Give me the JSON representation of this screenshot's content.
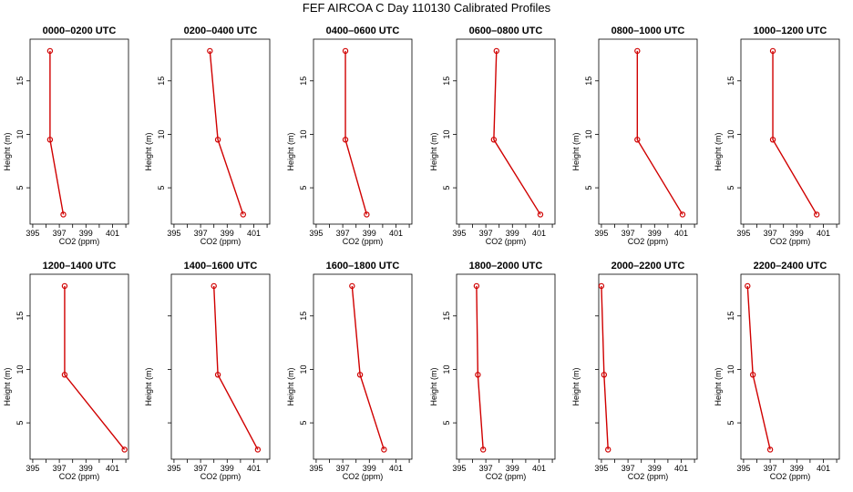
{
  "title": "FEF AIRCOA C  Day 110130  Calibrated Profiles",
  "colors": {
    "line": "#d00000",
    "frame": "#000000"
  },
  "chart_data": [
    {
      "type": "line",
      "title": "0000–0200 UTC",
      "xlabel": "CO2 (ppm)",
      "ylabel": "Height (m)",
      "xlim": [
        394.8,
        402.2
      ],
      "ylim": [
        1.6,
        18.9
      ],
      "xticks": [
        395,
        397,
        399,
        401
      ],
      "yticks": [
        5,
        10,
        15
      ],
      "heights": [
        2.5,
        9.5,
        17.8
      ],
      "values": [
        397.3,
        396.3,
        396.3
      ],
      "ytick_labels_shown": true
    },
    {
      "type": "line",
      "title": "0200–0400 UTC",
      "xlabel": "CO2 (ppm)",
      "ylabel": "Height (m)",
      "xlim": [
        394.8,
        402.2
      ],
      "ylim": [
        1.6,
        18.9
      ],
      "xticks": [
        395,
        397,
        399,
        401
      ],
      "yticks": [
        5,
        10,
        15
      ],
      "heights": [
        2.5,
        9.5,
        17.8
      ],
      "values": [
        400.2,
        398.3,
        397.7
      ],
      "ytick_labels_shown": true
    },
    {
      "type": "line",
      "title": "0400–0600 UTC",
      "xlabel": "CO2 (ppm)",
      "ylabel": "Height (m)",
      "xlim": [
        394.8,
        402.2
      ],
      "ylim": [
        1.6,
        18.9
      ],
      "xticks": [
        395,
        397,
        399,
        401
      ],
      "yticks": [
        5,
        10,
        15
      ],
      "heights": [
        2.5,
        9.5,
        17.8
      ],
      "values": [
        398.8,
        397.2,
        397.2
      ],
      "ytick_labels_shown": true
    },
    {
      "type": "line",
      "title": "0600–0800 UTC",
      "xlabel": "CO2 (ppm)",
      "ylabel": "Height (m)",
      "xlim": [
        394.8,
        402.2
      ],
      "ylim": [
        1.6,
        18.9
      ],
      "xticks": [
        395,
        397,
        399,
        401
      ],
      "yticks": [
        5,
        10,
        15
      ],
      "heights": [
        2.5,
        9.5,
        17.8
      ],
      "values": [
        401.1,
        397.6,
        397.8
      ],
      "ytick_labels_shown": true
    },
    {
      "type": "line",
      "title": "0800–1000 UTC",
      "xlabel": "CO2 (ppm)",
      "ylabel": "Height (m)",
      "xlim": [
        394.8,
        402.2
      ],
      "ylim": [
        1.6,
        18.9
      ],
      "xticks": [
        395,
        397,
        399,
        401
      ],
      "yticks": [
        5,
        10,
        15
      ],
      "heights": [
        2.5,
        9.5,
        17.8
      ],
      "values": [
        401.1,
        397.7,
        397.7
      ],
      "ytick_labels_shown": true
    },
    {
      "type": "line",
      "title": "1000–1200 UTC",
      "xlabel": "CO2 (ppm)",
      "ylabel": "Height (m)",
      "xlim": [
        394.8,
        402.2
      ],
      "ylim": [
        1.6,
        18.9
      ],
      "xticks": [
        395,
        397,
        399,
        401
      ],
      "yticks": [
        5,
        10,
        15
      ],
      "heights": [
        2.5,
        9.5,
        17.8
      ],
      "values": [
        400.5,
        397.2,
        397.2
      ],
      "ytick_labels_shown": true
    },
    {
      "type": "line",
      "title": "1200–1400 UTC",
      "xlabel": "CO2 (ppm)",
      "ylabel": "Height (m)",
      "xlim": [
        394.8,
        402.2
      ],
      "ylim": [
        1.6,
        18.9
      ],
      "xticks": [
        395,
        397,
        399,
        401
      ],
      "yticks": [
        5,
        10,
        15
      ],
      "heights": [
        2.5,
        9.5,
        17.8
      ],
      "values": [
        401.9,
        397.4,
        397.4
      ],
      "ytick_labels_shown": true
    },
    {
      "type": "line",
      "title": "1400–1600 UTC",
      "xlabel": "CO2 (ppm)",
      "ylabel": "Height (m)",
      "xlim": [
        394.8,
        402.2
      ],
      "ylim": [
        1.6,
        18.9
      ],
      "xticks": [
        395,
        397,
        399,
        401
      ],
      "yticks": [
        5,
        10,
        15
      ],
      "heights": [
        2.5,
        9.5,
        17.8
      ],
      "values": [
        401.3,
        398.3,
        398.0
      ],
      "ytick_labels_shown": false
    },
    {
      "type": "line",
      "title": "1600–1800 UTC",
      "xlabel": "CO2 (ppm)",
      "ylabel": "Height (m)",
      "xlim": [
        394.8,
        402.2
      ],
      "ylim": [
        1.6,
        18.9
      ],
      "xticks": [
        395,
        397,
        399,
        401
      ],
      "yticks": [
        5,
        10,
        15
      ],
      "heights": [
        2.5,
        9.5,
        17.8
      ],
      "values": [
        400.1,
        398.3,
        397.7
      ],
      "ytick_labels_shown": true
    },
    {
      "type": "line",
      "title": "1800–2000 UTC",
      "xlabel": "CO2 (ppm)",
      "ylabel": "Height (m)",
      "xlim": [
        394.8,
        402.2
      ],
      "ylim": [
        1.6,
        18.9
      ],
      "xticks": [
        395,
        397,
        399,
        401
      ],
      "yticks": [
        5,
        10,
        15
      ],
      "heights": [
        2.5,
        9.5,
        17.8
      ],
      "values": [
        396.8,
        396.4,
        396.3
      ],
      "ytick_labels_shown": true
    },
    {
      "type": "line",
      "title": "2000–2200 UTC",
      "xlabel": "CO2 (ppm)",
      "ylabel": "Height (m)",
      "xlim": [
        394.8,
        402.2
      ],
      "ylim": [
        1.6,
        18.9
      ],
      "xticks": [
        395,
        397,
        399,
        401
      ],
      "yticks": [
        5,
        10,
        15
      ],
      "heights": [
        2.5,
        9.5,
        17.8
      ],
      "values": [
        395.5,
        395.2,
        395.0
      ],
      "ytick_labels_shown": false
    },
    {
      "type": "line",
      "title": "2200–2400 UTC",
      "xlabel": "CO2 (ppm)",
      "ylabel": "Height (m)",
      "xlim": [
        394.8,
        402.2
      ],
      "ylim": [
        1.6,
        18.9
      ],
      "xticks": [
        395,
        397,
        399,
        401
      ],
      "yticks": [
        5,
        10,
        15
      ],
      "heights": [
        2.5,
        9.5,
        17.8
      ],
      "values": [
        397.0,
        395.7,
        395.3
      ],
      "ytick_labels_shown": true
    }
  ]
}
